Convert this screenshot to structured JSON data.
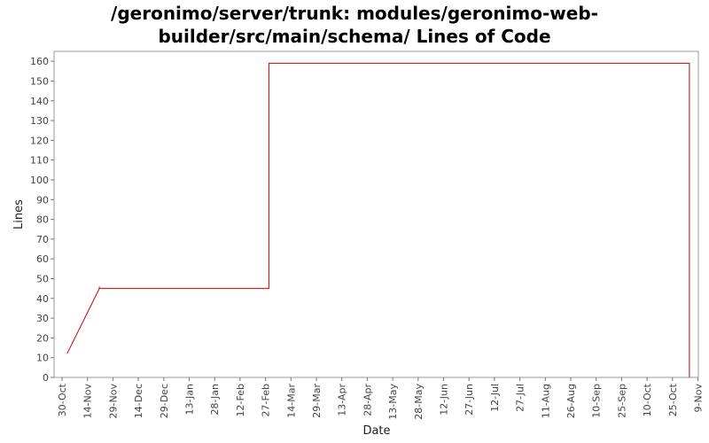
{
  "chart_data": {
    "type": "line",
    "title_lines": [
      "/geronimo/server/trunk: modules/geronimo-web-",
      "builder/src/main/schema/ Lines of Code"
    ],
    "xlabel": "Date",
    "ylabel": "Lines",
    "ylim": [
      0,
      165
    ],
    "y_ticks": [
      0,
      10,
      20,
      30,
      40,
      50,
      60,
      70,
      80,
      90,
      100,
      110,
      120,
      130,
      140,
      150,
      160
    ],
    "x_ticks": [
      "30-Oct",
      "14-Nov",
      "29-Nov",
      "14-Dec",
      "29-Dec",
      "13-Jan",
      "28-Jan",
      "12-Feb",
      "27-Feb",
      "14-Mar",
      "29-Mar",
      "13-Apr",
      "28-Apr",
      "13-May",
      "28-May",
      "12-Jun",
      "27-Jun",
      "12-Jul",
      "27-Jul",
      "11-Aug",
      "26-Aug",
      "10-Sep",
      "25-Sep",
      "10-Oct",
      "25-Oct",
      "9-Nov"
    ],
    "grid": false,
    "series": [
      {
        "color": "#cc0000",
        "step": true,
        "points": [
          {
            "x": "2 Nov",
            "y": 12
          },
          {
            "x": "21 Nov",
            "y": 45
          },
          {
            "x": "21 Nov",
            "y": 46
          },
          {
            "x": "21 Nov",
            "y": 45
          },
          {
            "x": "1 Mar",
            "y": 45
          },
          {
            "x": "1 Mar",
            "y": 159
          },
          {
            "x": "4 Nov",
            "y": 159
          },
          {
            "x": "4 Nov",
            "y": 0
          }
        ]
      }
    ]
  }
}
